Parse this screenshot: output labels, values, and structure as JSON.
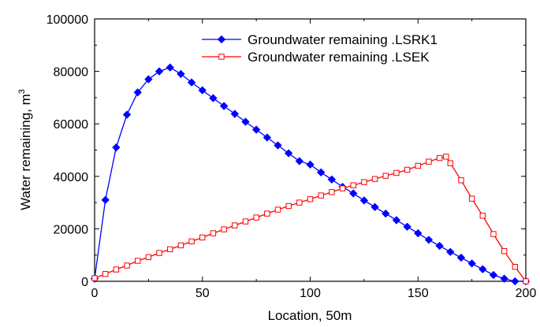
{
  "chart_data": {
    "type": "line",
    "xlabel": "Location, 50m",
    "ylabel_main": "Water remaining, m",
    "ylabel_superscript": "3",
    "xlim": [
      0,
      200
    ],
    "ylim": [
      0,
      100000
    ],
    "x_ticks": [
      0,
      50,
      100,
      150,
      200
    ],
    "y_ticks": [
      0,
      20000,
      40000,
      60000,
      80000,
      100000
    ],
    "grid": false,
    "legend_position": "top-right",
    "series": [
      {
        "name": "Groundwater remaining .LSRK1",
        "color": "#0000ff",
        "marker": "filled-diamond",
        "x": [
          0,
          5,
          10,
          15,
          20,
          25,
          30,
          35,
          40,
          45,
          50,
          55,
          60,
          65,
          70,
          75,
          80,
          85,
          90,
          95,
          100,
          105,
          110,
          115,
          120,
          125,
          130,
          135,
          140,
          145,
          150,
          155,
          160,
          165,
          170,
          175,
          180,
          185,
          190,
          195,
          200
        ],
        "y": [
          1000,
          31000,
          51000,
          63500,
          72000,
          77000,
          80000,
          81500,
          79000,
          75800,
          72800,
          69800,
          66800,
          63800,
          60800,
          57800,
          54800,
          51800,
          48800,
          45800,
          44500,
          41500,
          38800,
          36000,
          33500,
          30800,
          28300,
          25800,
          23300,
          20800,
          18300,
          15800,
          13500,
          11200,
          9000,
          6800,
          4600,
          2400,
          1000,
          0,
          0
        ]
      },
      {
        "name": "Groundwater remaining .LSEK",
        "color": "#ff0000",
        "marker": "open-square",
        "x": [
          0,
          5,
          10,
          15,
          20,
          25,
          30,
          35,
          40,
          45,
          50,
          55,
          60,
          65,
          70,
          75,
          80,
          85,
          90,
          95,
          100,
          105,
          110,
          115,
          120,
          125,
          130,
          135,
          140,
          145,
          150,
          155,
          160,
          163,
          165,
          170,
          175,
          180,
          185,
          190,
          195,
          200
        ],
        "y": [
          1200,
          2800,
          4500,
          6000,
          7800,
          9200,
          10800,
          12200,
          13700,
          15200,
          16700,
          18300,
          19800,
          21300,
          22800,
          24300,
          25800,
          27300,
          28700,
          30000,
          31300,
          32700,
          34000,
          35400,
          36600,
          37800,
          39000,
          40200,
          41300,
          42500,
          44000,
          45600,
          47000,
          47500,
          45000,
          38500,
          31500,
          25000,
          18000,
          11500,
          5500,
          0
        ]
      }
    ]
  }
}
